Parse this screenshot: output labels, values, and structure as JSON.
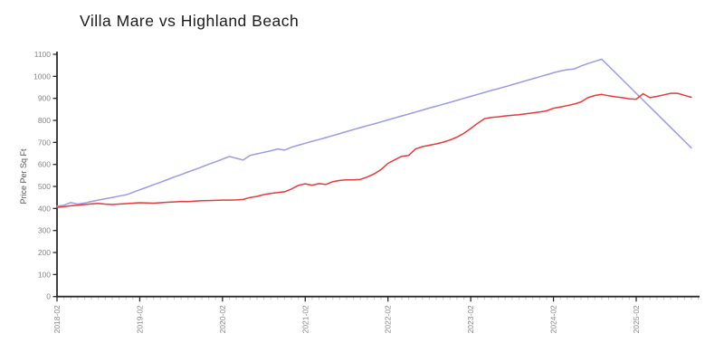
{
  "page": {
    "title": "Villa Mare vs Highland Beach"
  },
  "colors": {
    "axis": "#2a2a2a",
    "tick_label": "#858585",
    "minor_tick": "#c9c9c9",
    "villa_mare_blue": "#9a9ae6",
    "highland_beach_red": "#e43b3b"
  },
  "chart_data": {
    "type": "line",
    "title": "Villa Mare vs Highland Beach",
    "xlabel": "",
    "ylabel": "Price Per Sq Ft",
    "ylim": [
      0,
      1100
    ],
    "grid": false,
    "legend_position": "none",
    "y_ticks": [
      0,
      100,
      200,
      300,
      400,
      500,
      600,
      700,
      800,
      900,
      1000,
      1100
    ],
    "x_tick_labels": [
      "2018-02",
      "2019-02",
      "2020-02",
      "2021-02",
      "2022-02",
      "2023-02",
      "2024-02",
      "2025-02"
    ],
    "x_tick_month_indices": [
      0,
      12,
      24,
      36,
      48,
      60,
      72,
      84
    ],
    "x_unit": "month",
    "x": [
      "2018-02",
      "2018-03",
      "2018-04",
      "2018-05",
      "2018-06",
      "2018-07",
      "2018-08",
      "2018-09",
      "2018-10",
      "2018-11",
      "2018-12",
      "2019-01",
      "2019-02",
      "2019-03",
      "2019-04",
      "2019-05",
      "2019-06",
      "2019-07",
      "2019-08",
      "2019-09",
      "2019-10",
      "2019-11",
      "2019-12",
      "2020-01",
      "2020-02",
      "2020-03",
      "2020-04",
      "2020-05",
      "2020-06",
      "2020-07",
      "2020-08",
      "2020-09",
      "2020-10",
      "2020-11",
      "2020-12",
      "2021-01",
      "2021-02",
      "2021-03",
      "2021-04",
      "2021-05",
      "2021-06",
      "2021-07",
      "2021-08",
      "2021-09",
      "2021-10",
      "2021-11",
      "2021-12",
      "2022-01",
      "2022-02",
      "2022-03",
      "2022-04",
      "2022-05",
      "2022-06",
      "2022-07",
      "2022-08",
      "2022-09",
      "2022-10",
      "2022-11",
      "2022-12",
      "2023-01",
      "2023-02",
      "2023-03",
      "2023-04",
      "2023-05",
      "2023-06",
      "2023-07",
      "2023-08",
      "2023-09",
      "2023-10",
      "2023-11",
      "2023-12",
      "2024-01",
      "2024-02",
      "2024-03",
      "2024-04",
      "2024-05",
      "2024-06",
      "2024-07",
      "2024-08",
      "2024-09",
      "2024-10",
      "2024-11",
      "2024-12",
      "2025-01",
      "2025-02",
      "2025-03",
      "2025-04",
      "2025-05",
      "2025-06",
      "2025-07",
      "2025-08",
      "2025-09",
      "2025-10"
    ],
    "series": [
      {
        "name": "Villa Mare",
        "color": "#9a9ae6",
        "values": [
          410,
          415,
          427,
          420,
          425,
          432,
          438,
          444,
          450,
          456,
          462,
          473,
          485,
          496,
          508,
          519,
          531,
          543,
          554,
          566,
          577,
          589,
          601,
          612,
          624,
          636,
          628,
          620,
          641,
          648,
          655,
          662,
          670,
          665,
          678,
          687,
          696,
          705,
          713,
          722,
          731,
          740,
          749,
          758,
          767,
          776,
          784,
          793,
          802,
          811,
          820,
          829,
          838,
          847,
          856,
          864,
          873,
          882,
          891,
          900,
          909,
          918,
          927,
          936,
          944,
          953,
          962,
          971,
          980,
          989,
          998,
          1007,
          1016,
          1024,
          1030,
          1033,
          1047,
          1058,
          1068,
          1078,
          1047,
          1016,
          985,
          954,
          923,
          892,
          861,
          830,
          799,
          768,
          737,
          706,
          675
        ]
      },
      {
        "name": "Highland Beach",
        "color": "#e43b3b",
        "values": [
          405,
          408,
          412,
          415,
          418,
          421,
          423,
          420,
          418,
          420,
          422,
          424,
          426,
          425,
          424,
          426,
          428,
          430,
          432,
          431,
          433,
          435,
          436,
          437,
          438,
          438,
          439,
          441,
          450,
          455,
          463,
          468,
          472,
          476,
          488,
          505,
          512,
          506,
          513,
          509,
          522,
          527,
          530,
          530,
          532,
          543,
          557,
          577,
          605,
          621,
          637,
          641,
          670,
          681,
          687,
          693,
          701,
          711,
          724,
          741,
          763,
          787,
          808,
          813,
          816,
          820,
          823,
          826,
          830,
          834,
          838,
          843,
          855,
          861,
          867,
          874,
          884,
          903,
          913,
          918,
          912,
          907,
          903,
          898,
          896,
          921,
          903,
          909,
          916,
          923,
          923,
          914,
          905
        ]
      }
    ]
  }
}
